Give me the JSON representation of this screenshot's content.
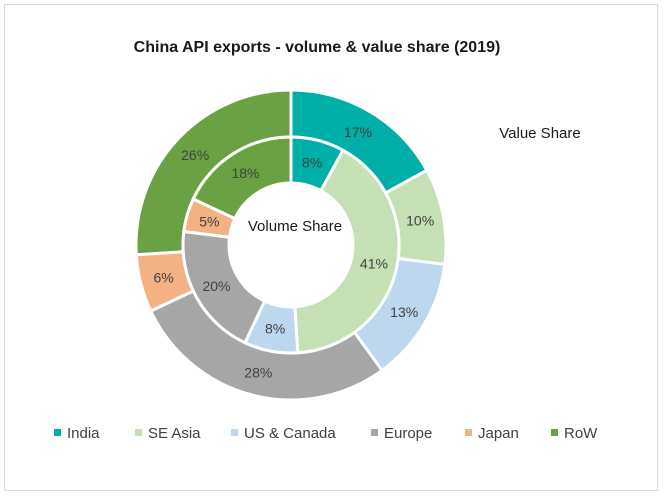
{
  "chart_data": {
    "type": "donut",
    "title": "China API exports - volume & value share (2019)",
    "outer_ring_label": "Value Share",
    "inner_ring_label": "Volume Share",
    "categories": [
      "India",
      "SE Asia",
      "US & Canada",
      "Europe",
      "Japan",
      "RoW"
    ],
    "colors": [
      "#00b0a8",
      "#c5e0b4",
      "#bdd7ee",
      "#a6a6a6",
      "#f4b183",
      "#6aa243"
    ],
    "series": [
      {
        "name": "Volume Share",
        "values": [
          8,
          41,
          8,
          20,
          5,
          18
        ]
      },
      {
        "name": "Value Share",
        "values": [
          17,
          10,
          13,
          28,
          6,
          26
        ]
      }
    ],
    "value_suffix": "%",
    "legend_position": "bottom"
  }
}
